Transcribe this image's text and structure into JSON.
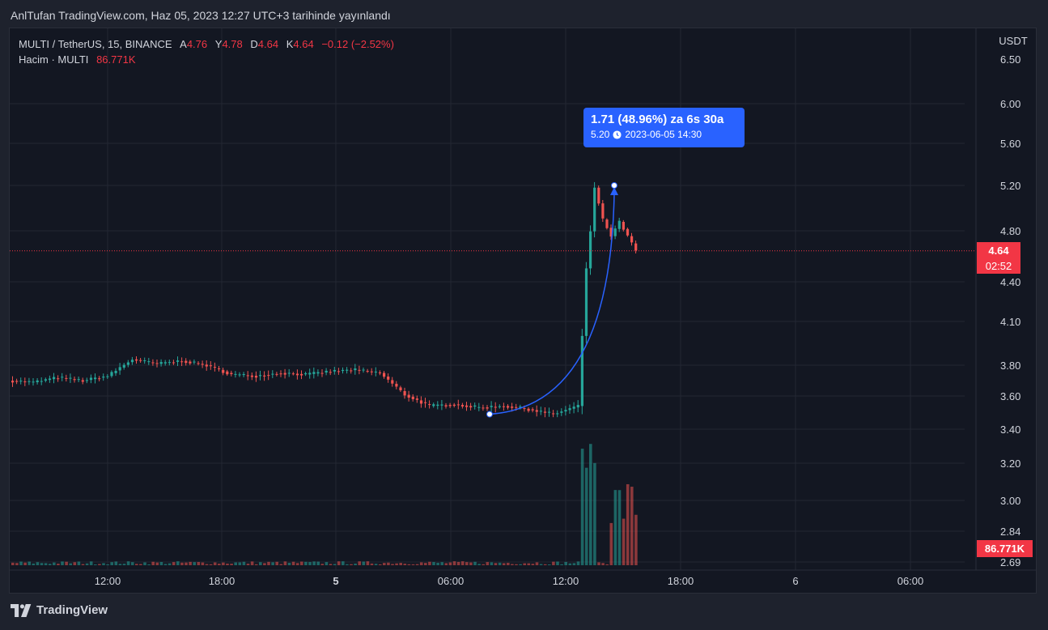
{
  "header": {
    "title": "AnlTufan TradingView.com, Haz 05, 2023 12:27 UTC+3 tarihinde yayınlandı"
  },
  "legend": {
    "symbol": "MULTI / TetherUS, 15, BINANCE",
    "open_label": "A",
    "open": "4.76",
    "high_label": "Y",
    "high": "4.78",
    "low_label": "D",
    "low": "4.64",
    "close_label": "K",
    "close": "4.64",
    "change": "−0.12 (−2.52%)",
    "volume_label": "Hacim · MULTI",
    "volume_value": "86.771K"
  },
  "price_axis": {
    "currency": "USDT",
    "ticks": [
      "6.50",
      "6.00",
      "5.60",
      "5.20",
      "4.80",
      "4.40",
      "4.10",
      "3.80",
      "3.60",
      "3.40",
      "3.20",
      "3.00",
      "2.84",
      "2.69"
    ]
  },
  "last_price": {
    "value": "4.64",
    "countdown": "02:52"
  },
  "volume_tag": {
    "value": "86.771K"
  },
  "time_axis": {
    "ticks": [
      {
        "label": "12:00",
        "bold": false
      },
      {
        "label": "18:00",
        "bold": false
      },
      {
        "label": "5",
        "bold": true
      },
      {
        "label": "06:00",
        "bold": false
      },
      {
        "label": "12:00",
        "bold": false
      },
      {
        "label": "18:00",
        "bold": false
      },
      {
        "label": "6",
        "bold": false
      },
      {
        "label": "06:00",
        "bold": false
      }
    ]
  },
  "callout": {
    "line1": "1.71 (48.96%) za 6s 30a",
    "price": "5.20",
    "datetime": "2023-06-05  14:30",
    "from_price": 3.49,
    "to_price": 5.2
  },
  "footer": {
    "brand": "TradingView"
  },
  "colors": {
    "up": "#26a69a",
    "down": "#ef5350",
    "accent": "#2962ff",
    "tag": "#f23645"
  },
  "chart_data": {
    "type": "candlestick",
    "title": "MULTI / TetherUS, 15, BINANCE",
    "ylabel": "USDT",
    "scale": "log",
    "ylim": [
      2.69,
      6.7
    ],
    "grid": true,
    "series": [
      {
        "name": "MULTI / TetherUS",
        "kind": "ohlc",
        "segments": [
          {
            "from": 3.7,
            "to": 3.69
          },
          {
            "from": 3.69,
            "to": 3.72
          },
          {
            "from": 3.72,
            "to": 3.7
          },
          {
            "from": 3.7,
            "to": 3.73
          },
          {
            "from": 3.73,
            "to": 3.84
          },
          {
            "from": 3.84,
            "to": 3.81
          },
          {
            "from": 3.81,
            "to": 3.83
          },
          {
            "from": 3.83,
            "to": 3.8
          },
          {
            "from": 3.8,
            "to": 3.74
          },
          {
            "from": 3.74,
            "to": 3.73
          },
          {
            "from": 3.73,
            "to": 3.75
          },
          {
            "from": 3.75,
            "to": 3.74
          },
          {
            "from": 3.74,
            "to": 3.76
          },
          {
            "from": 3.76,
            "to": 3.77
          },
          {
            "from": 3.77,
            "to": 3.75
          },
          {
            "from": 3.75,
            "to": 3.61
          },
          {
            "from": 3.61,
            "to": 3.54
          },
          {
            "from": 3.54,
            "to": 3.55
          },
          {
            "from": 3.55,
            "to": 3.53
          },
          {
            "from": 3.53,
            "to": 3.54
          },
          {
            "from": 3.54,
            "to": 3.52
          },
          {
            "from": 3.52,
            "to": 3.49
          },
          {
            "from": 3.49,
            "to": 3.54
          },
          {
            "from": 3.54,
            "to": 4.0
          },
          {
            "from": 4.0,
            "to": 4.5
          },
          {
            "from": 4.5,
            "to": 4.8
          },
          {
            "from": 4.8,
            "to": 5.18
          },
          {
            "from": 5.18,
            "to": 4.9
          },
          {
            "from": 4.9,
            "to": 4.76
          },
          {
            "from": 4.76,
            "to": 4.88
          },
          {
            "from": 4.88,
            "to": 4.76
          },
          {
            "from": 4.76,
            "to": 4.64
          }
        ]
      },
      {
        "name": "Hacim · MULTI",
        "kind": "volume",
        "last": "86.771K"
      }
    ]
  }
}
